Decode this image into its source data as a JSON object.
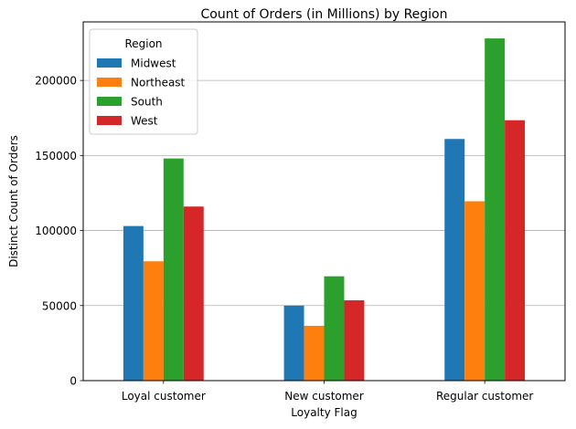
{
  "chart_data": {
    "type": "bar",
    "title": "Count of Orders (in Millions) by Region",
    "xlabel": "Loyalty Flag",
    "ylabel": "Distinct Count of Orders",
    "categories": [
      "Loyal customer",
      "New customer",
      "Regular customer"
    ],
    "series": [
      {
        "name": "Midwest",
        "color": "#1f77b4",
        "values": [
          103000,
          50000,
          161000
        ]
      },
      {
        "name": "Northeast",
        "color": "#ff7f0e",
        "values": [
          79500,
          36500,
          119500
        ]
      },
      {
        "name": "South",
        "color": "#2ca02c",
        "values": [
          148000,
          69500,
          228000
        ]
      },
      {
        "name": "West",
        "color": "#d62728",
        "values": [
          116000,
          53500,
          173500
        ]
      }
    ],
    "ylim": [
      0,
      239000
    ],
    "yticks": [
      0,
      50000,
      100000,
      150000,
      200000
    ],
    "ytick_labels": [
      "0",
      "50000",
      "100000",
      "150000",
      "200000"
    ],
    "grid": "y",
    "legend": {
      "title": "Region",
      "placement": "top-left"
    }
  }
}
